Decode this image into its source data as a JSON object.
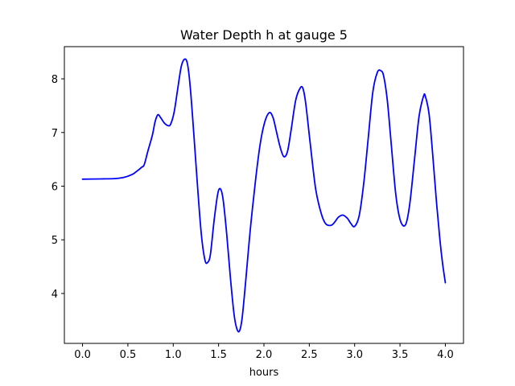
{
  "chart_data": {
    "type": "line",
    "title": "Water Depth h at gauge 5",
    "xlabel": "hours",
    "ylabel": "",
    "xlim": [
      -0.2,
      4.2
    ],
    "ylim": [
      3.07,
      8.6
    ],
    "grid": false,
    "legend": "none",
    "x_ticks": [
      0.0,
      0.5,
      1.0,
      1.5,
      2.0,
      2.5,
      3.0,
      3.5,
      4.0
    ],
    "x_tick_labels": [
      "0.0",
      "0.5",
      "1.0",
      "1.5",
      "2.0",
      "2.5",
      "3.0",
      "3.5",
      "4.0"
    ],
    "y_ticks": [
      4,
      5,
      6,
      7,
      8
    ],
    "y_tick_labels": [
      "4",
      "5",
      "6",
      "7",
      "8"
    ],
    "series": [
      {
        "color": "#0000ff",
        "points": [
          [
            0.0,
            6.13
          ],
          [
            0.2,
            6.135
          ],
          [
            0.35,
            6.14
          ],
          [
            0.45,
            6.16
          ],
          [
            0.55,
            6.22
          ],
          [
            0.6,
            6.28
          ],
          [
            0.65,
            6.35
          ],
          [
            0.68,
            6.4
          ],
          [
            0.72,
            6.65
          ],
          [
            0.77,
            6.95
          ],
          [
            0.8,
            7.2
          ],
          [
            0.83,
            7.33
          ],
          [
            0.86,
            7.28
          ],
          [
            0.9,
            7.18
          ],
          [
            0.94,
            7.13
          ],
          [
            0.97,
            7.15
          ],
          [
            1.01,
            7.38
          ],
          [
            1.05,
            7.82
          ],
          [
            1.09,
            8.24
          ],
          [
            1.13,
            8.37
          ],
          [
            1.16,
            8.25
          ],
          [
            1.19,
            7.8
          ],
          [
            1.23,
            6.9
          ],
          [
            1.27,
            5.95
          ],
          [
            1.31,
            5.1
          ],
          [
            1.35,
            4.62
          ],
          [
            1.38,
            4.58
          ],
          [
            1.41,
            4.73
          ],
          [
            1.45,
            5.35
          ],
          [
            1.49,
            5.85
          ],
          [
            1.52,
            5.95
          ],
          [
            1.55,
            5.75
          ],
          [
            1.59,
            5.1
          ],
          [
            1.63,
            4.3
          ],
          [
            1.67,
            3.62
          ],
          [
            1.7,
            3.35
          ],
          [
            1.73,
            3.3
          ],
          [
            1.76,
            3.55
          ],
          [
            1.8,
            4.25
          ],
          [
            1.85,
            5.2
          ],
          [
            1.91,
            6.15
          ],
          [
            1.96,
            6.8
          ],
          [
            2.01,
            7.2
          ],
          [
            2.06,
            7.37
          ],
          [
            2.1,
            7.28
          ],
          [
            2.14,
            7.0
          ],
          [
            2.18,
            6.72
          ],
          [
            2.22,
            6.55
          ],
          [
            2.26,
            6.65
          ],
          [
            2.3,
            7.05
          ],
          [
            2.35,
            7.6
          ],
          [
            2.4,
            7.83
          ],
          [
            2.43,
            7.82
          ],
          [
            2.46,
            7.55
          ],
          [
            2.51,
            6.8
          ],
          [
            2.57,
            5.95
          ],
          [
            2.63,
            5.5
          ],
          [
            2.68,
            5.3
          ],
          [
            2.74,
            5.27
          ],
          [
            2.78,
            5.33
          ],
          [
            2.82,
            5.42
          ],
          [
            2.87,
            5.46
          ],
          [
            2.92,
            5.4
          ],
          [
            2.96,
            5.3
          ],
          [
            3.0,
            5.25
          ],
          [
            3.05,
            5.45
          ],
          [
            3.1,
            6.05
          ],
          [
            3.15,
            6.9
          ],
          [
            3.2,
            7.75
          ],
          [
            3.25,
            8.12
          ],
          [
            3.29,
            8.15
          ],
          [
            3.32,
            8.05
          ],
          [
            3.36,
            7.6
          ],
          [
            3.4,
            6.85
          ],
          [
            3.45,
            5.9
          ],
          [
            3.49,
            5.45
          ],
          [
            3.53,
            5.27
          ],
          [
            3.57,
            5.32
          ],
          [
            3.61,
            5.7
          ],
          [
            3.66,
            6.5
          ],
          [
            3.71,
            7.3
          ],
          [
            3.76,
            7.68
          ],
          [
            3.78,
            7.67
          ],
          [
            3.82,
            7.35
          ],
          [
            3.86,
            6.6
          ],
          [
            3.9,
            5.75
          ],
          [
            3.94,
            5.0
          ],
          [
            3.97,
            4.55
          ],
          [
            4.0,
            4.2
          ]
        ]
      }
    ]
  }
}
